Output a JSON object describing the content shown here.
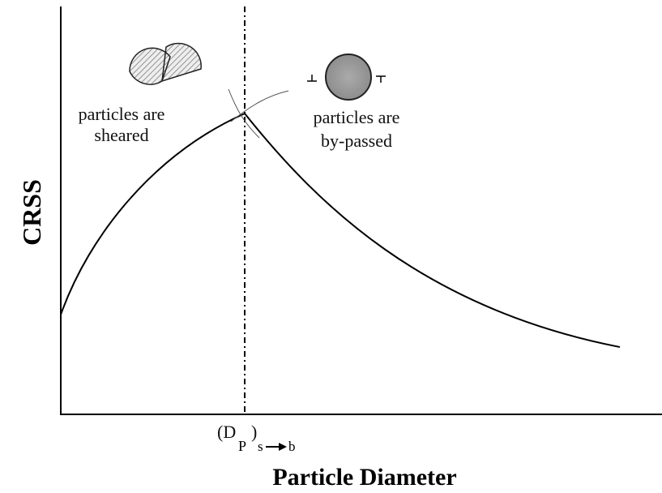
{
  "axes": {
    "y_label": "CRSS",
    "x_label": "Particle Diameter"
  },
  "marker": {
    "open": "(D",
    "sub": "P",
    "close": ")",
    "from": "s",
    "to": "b"
  },
  "regions": [
    {
      "lines": [
        "particles are",
        "sheared"
      ]
    },
    {
      "lines": [
        "particles are",
        "by-passed"
      ]
    }
  ]
}
